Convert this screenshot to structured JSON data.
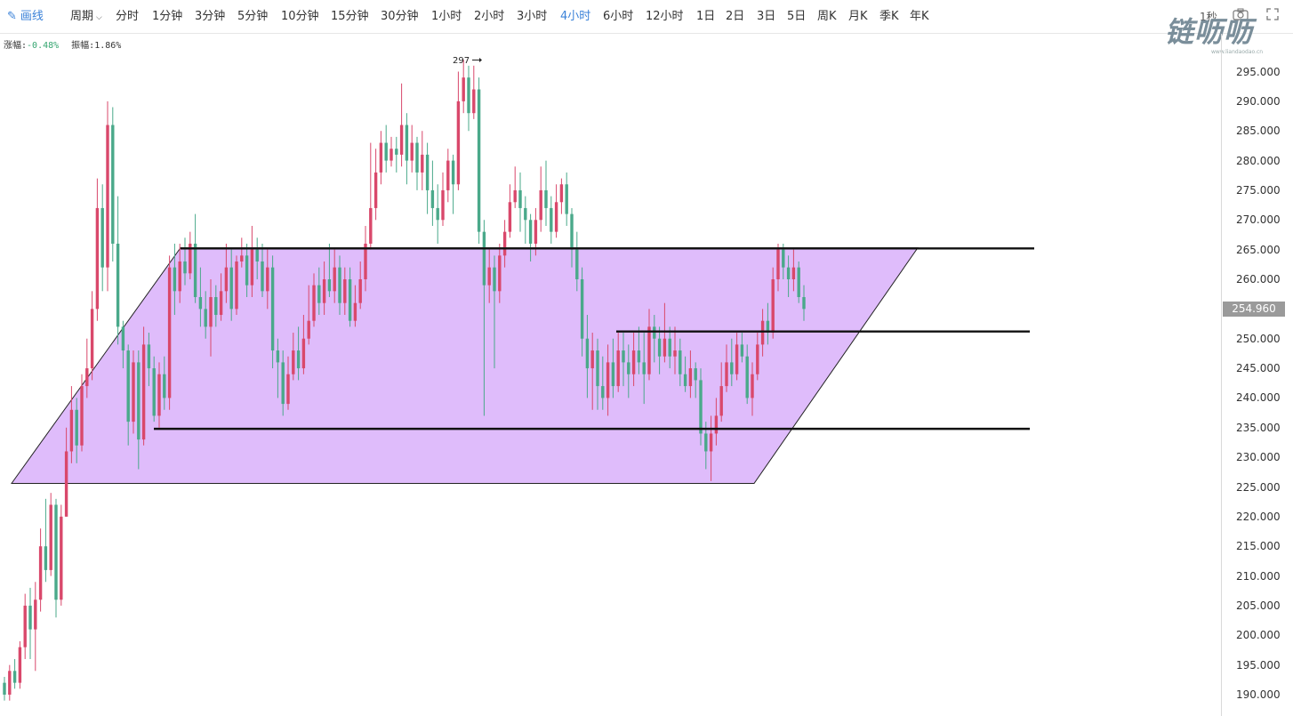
{
  "toolbar": {
    "draw_label": "画线",
    "period_label": "周期",
    "items": [
      "分时",
      "1分钟",
      "3分钟",
      "5分钟",
      "10分钟",
      "15分钟",
      "30分钟",
      "1小时",
      "2小时",
      "3小时",
      "4小时",
      "6小时",
      "12小时",
      "1日",
      "2日",
      "3日",
      "5日",
      "周K",
      "月K",
      "季K",
      "年K"
    ],
    "active": "4小时",
    "interval_label": "1秒"
  },
  "logo": {
    "text": "链呖呖",
    "sub": "www.liandaodao.cn"
  },
  "info": {
    "change_label": "涨幅:",
    "change_value": "-0.48%",
    "amplitude_label": "振幅:",
    "amplitude_value": "1.86%"
  },
  "colors": {
    "up": "#d9486b",
    "down": "#4aa98a",
    "channel": "#ddb8fb",
    "active": "#3b82d8"
  },
  "price_axis": {
    "ticks": [
      "295.000",
      "290.000",
      "285.000",
      "280.000",
      "275.000",
      "270.000",
      "265.000",
      "260.000",
      "255.000",
      "250.000",
      "245.000",
      "240.000",
      "235.000",
      "230.000",
      "225.000",
      "220.000",
      "215.000",
      "210.000",
      "205.000",
      "200.000",
      "195.000",
      "190.000"
    ],
    "current_price": "254.960"
  },
  "chart_data": {
    "type": "candlestick",
    "timeframe": "4小时",
    "ylim": [
      187,
      300
    ],
    "max_marker_label": "297",
    "candles": [
      [
        192,
        190,
        193,
        189
      ],
      [
        190,
        194,
        195,
        189
      ],
      [
        194,
        192,
        196,
        191
      ],
      [
        192,
        198,
        199,
        191
      ],
      [
        198,
        205,
        207,
        196
      ],
      [
        205,
        201,
        208,
        196
      ],
      [
        201,
        206,
        209,
        194
      ],
      [
        206,
        215,
        218,
        204
      ],
      [
        215,
        211,
        223,
        209
      ],
      [
        211,
        222,
        224,
        210
      ],
      [
        222,
        206,
        223,
        203
      ],
      [
        206,
        220,
        222,
        205
      ],
      [
        220,
        231,
        235,
        220
      ],
      [
        231,
        238,
        242,
        229
      ],
      [
        238,
        232,
        240,
        229
      ],
      [
        232,
        242,
        244,
        231
      ],
      [
        242,
        245,
        250,
        240
      ],
      [
        245,
        255,
        258,
        243
      ],
      [
        255,
        272,
        277,
        253
      ],
      [
        272,
        262,
        276,
        258
      ],
      [
        262,
        286,
        290,
        258
      ],
      [
        286,
        266,
        289,
        263
      ],
      [
        266,
        252,
        274,
        249
      ],
      [
        252,
        248,
        253,
        245
      ],
      [
        248,
        236,
        249,
        232
      ],
      [
        236,
        246,
        248,
        234
      ],
      [
        246,
        233,
        248,
        228
      ],
      [
        233,
        249,
        252,
        232
      ],
      [
        249,
        245,
        251,
        242
      ],
      [
        245,
        237,
        247,
        236
      ],
      [
        237,
        244,
        246,
        235
      ],
      [
        244,
        240,
        247,
        238
      ],
      [
        240,
        262,
        264,
        238
      ],
      [
        262,
        258,
        266,
        254
      ],
      [
        258,
        263,
        266,
        256
      ],
      [
        263,
        261,
        267,
        259
      ],
      [
        261,
        266,
        268,
        260
      ],
      [
        266,
        257,
        271,
        256
      ],
      [
        257,
        255,
        262,
        252
      ],
      [
        255,
        252,
        258,
        250
      ],
      [
        252,
        257,
        260,
        247
      ],
      [
        257,
        254,
        259,
        252
      ],
      [
        254,
        258,
        261,
        253
      ],
      [
        258,
        262,
        266,
        256
      ],
      [
        262,
        255,
        265,
        253
      ],
      [
        255,
        263,
        264,
        254
      ],
      [
        263,
        264,
        267,
        262
      ],
      [
        264,
        259,
        266,
        257
      ],
      [
        259,
        265,
        269,
        257
      ],
      [
        265,
        263,
        267,
        260
      ],
      [
        263,
        258,
        266,
        257
      ],
      [
        258,
        262,
        265,
        255
      ],
      [
        262,
        248,
        264,
        245
      ],
      [
        248,
        246,
        250,
        240
      ],
      [
        246,
        239,
        248,
        237
      ],
      [
        239,
        244,
        247,
        238
      ],
      [
        244,
        248,
        251,
        243
      ],
      [
        248,
        245,
        252,
        243
      ],
      [
        245,
        250,
        254,
        244
      ],
      [
        250,
        253,
        259,
        249
      ],
      [
        253,
        259,
        261,
        252
      ],
      [
        259,
        256,
        262,
        254
      ],
      [
        256,
        260,
        263,
        254
      ],
      [
        260,
        258,
        266,
        257
      ],
      [
        258,
        262,
        265,
        256
      ],
      [
        262,
        256,
        264,
        254
      ],
      [
        256,
        260,
        262,
        254
      ],
      [
        260,
        253,
        262,
        252
      ],
      [
        253,
        256,
        259,
        252
      ],
      [
        256,
        260,
        263,
        255
      ],
      [
        260,
        266,
        269,
        258
      ],
      [
        266,
        272,
        283,
        265
      ],
      [
        272,
        278,
        282,
        270
      ],
      [
        278,
        283,
        285,
        276
      ],
      [
        283,
        280,
        286,
        278
      ],
      [
        280,
        282,
        284,
        279
      ],
      [
        282,
        281,
        284,
        278
      ],
      [
        281,
        286,
        293,
        279
      ],
      [
        286,
        280,
        288,
        276
      ],
      [
        280,
        283,
        286,
        278
      ],
      [
        283,
        278,
        284,
        275
      ],
      [
        278,
        281,
        285,
        275
      ],
      [
        281,
        275,
        283,
        271
      ],
      [
        275,
        272,
        280,
        269
      ],
      [
        272,
        270,
        276,
        266
      ],
      [
        270,
        275,
        278,
        269
      ],
      [
        275,
        280,
        282,
        273
      ],
      [
        280,
        276,
        281,
        271
      ],
      [
        276,
        290,
        295,
        275
      ],
      [
        290,
        294,
        297,
        288
      ],
      [
        294,
        288,
        296,
        285
      ],
      [
        288,
        292,
        296,
        287
      ],
      [
        292,
        268,
        294,
        266
      ],
      [
        268,
        259,
        270,
        237
      ],
      [
        259,
        262,
        265,
        256
      ],
      [
        262,
        258,
        264,
        245
      ],
      [
        258,
        264,
        266,
        256
      ],
      [
        264,
        268,
        270,
        262
      ],
      [
        268,
        273,
        276,
        267
      ],
      [
        273,
        275,
        279,
        272
      ],
      [
        275,
        272,
        278,
        268
      ],
      [
        272,
        270,
        274,
        266
      ],
      [
        270,
        266,
        271,
        263
      ],
      [
        266,
        270,
        272,
        264
      ],
      [
        270,
        275,
        279,
        268
      ],
      [
        275,
        272,
        280,
        269
      ],
      [
        272,
        268,
        274,
        266
      ],
      [
        268,
        273,
        276,
        267
      ],
      [
        273,
        276,
        277,
        271
      ],
      [
        276,
        271,
        278,
        269
      ],
      [
        271,
        265,
        272,
        262
      ],
      [
        265,
        260,
        268,
        258
      ],
      [
        260,
        250,
        262,
        247
      ],
      [
        250,
        245,
        254,
        240
      ],
      [
        245,
        248,
        251,
        238
      ],
      [
        248,
        242,
        250,
        238
      ],
      [
        242,
        240,
        247,
        238
      ],
      [
        240,
        246,
        249,
        237
      ],
      [
        246,
        242,
        250,
        240
      ],
      [
        242,
        248,
        251,
        241
      ],
      [
        248,
        246,
        251,
        242
      ],
      [
        246,
        244,
        249,
        240
      ],
      [
        244,
        248,
        251,
        242
      ],
      [
        248,
        246,
        252,
        244
      ],
      [
        246,
        244,
        251,
        239
      ],
      [
        244,
        252,
        255,
        243
      ],
      [
        252,
        250,
        254,
        246
      ],
      [
        250,
        247,
        252,
        244
      ],
      [
        247,
        250,
        256,
        246
      ],
      [
        250,
        247,
        252,
        245
      ],
      [
        247,
        248,
        252,
        244
      ],
      [
        248,
        244,
        250,
        242
      ],
      [
        244,
        242,
        247,
        241
      ],
      [
        242,
        245,
        248,
        240
      ],
      [
        245,
        243,
        246,
        240
      ],
      [
        243,
        234,
        245,
        232
      ],
      [
        234,
        231,
        236,
        228
      ],
      [
        231,
        234,
        237,
        226
      ],
      [
        234,
        237,
        240,
        232
      ],
      [
        237,
        242,
        246,
        236
      ],
      [
        242,
        246,
        249,
        241
      ],
      [
        246,
        244,
        250,
        242
      ],
      [
        244,
        249,
        251,
        243
      ],
      [
        249,
        247,
        251,
        246
      ],
      [
        247,
        240,
        249,
        239
      ],
      [
        240,
        244,
        246,
        237
      ],
      [
        244,
        249,
        251,
        243
      ],
      [
        249,
        253,
        255,
        247
      ],
      [
        253,
        251,
        256,
        249
      ],
      [
        251,
        260,
        262,
        250
      ],
      [
        260,
        265,
        266,
        258
      ],
      [
        265,
        262,
        266,
        260
      ],
      [
        262,
        260,
        264,
        257
      ],
      [
        260,
        262,
        265,
        258
      ],
      [
        262,
        257,
        263,
        256
      ],
      [
        257,
        255,
        259,
        253
      ]
    ],
    "drawings": [
      {
        "type": "parallel-channel",
        "upper_price": 265.3,
        "lower_price": 225.6
      },
      {
        "type": "horizontal-line",
        "price": 265.2
      },
      {
        "type": "horizontal-line",
        "price": 251.2
      },
      {
        "type": "horizontal-line",
        "price": 234.8
      }
    ]
  }
}
